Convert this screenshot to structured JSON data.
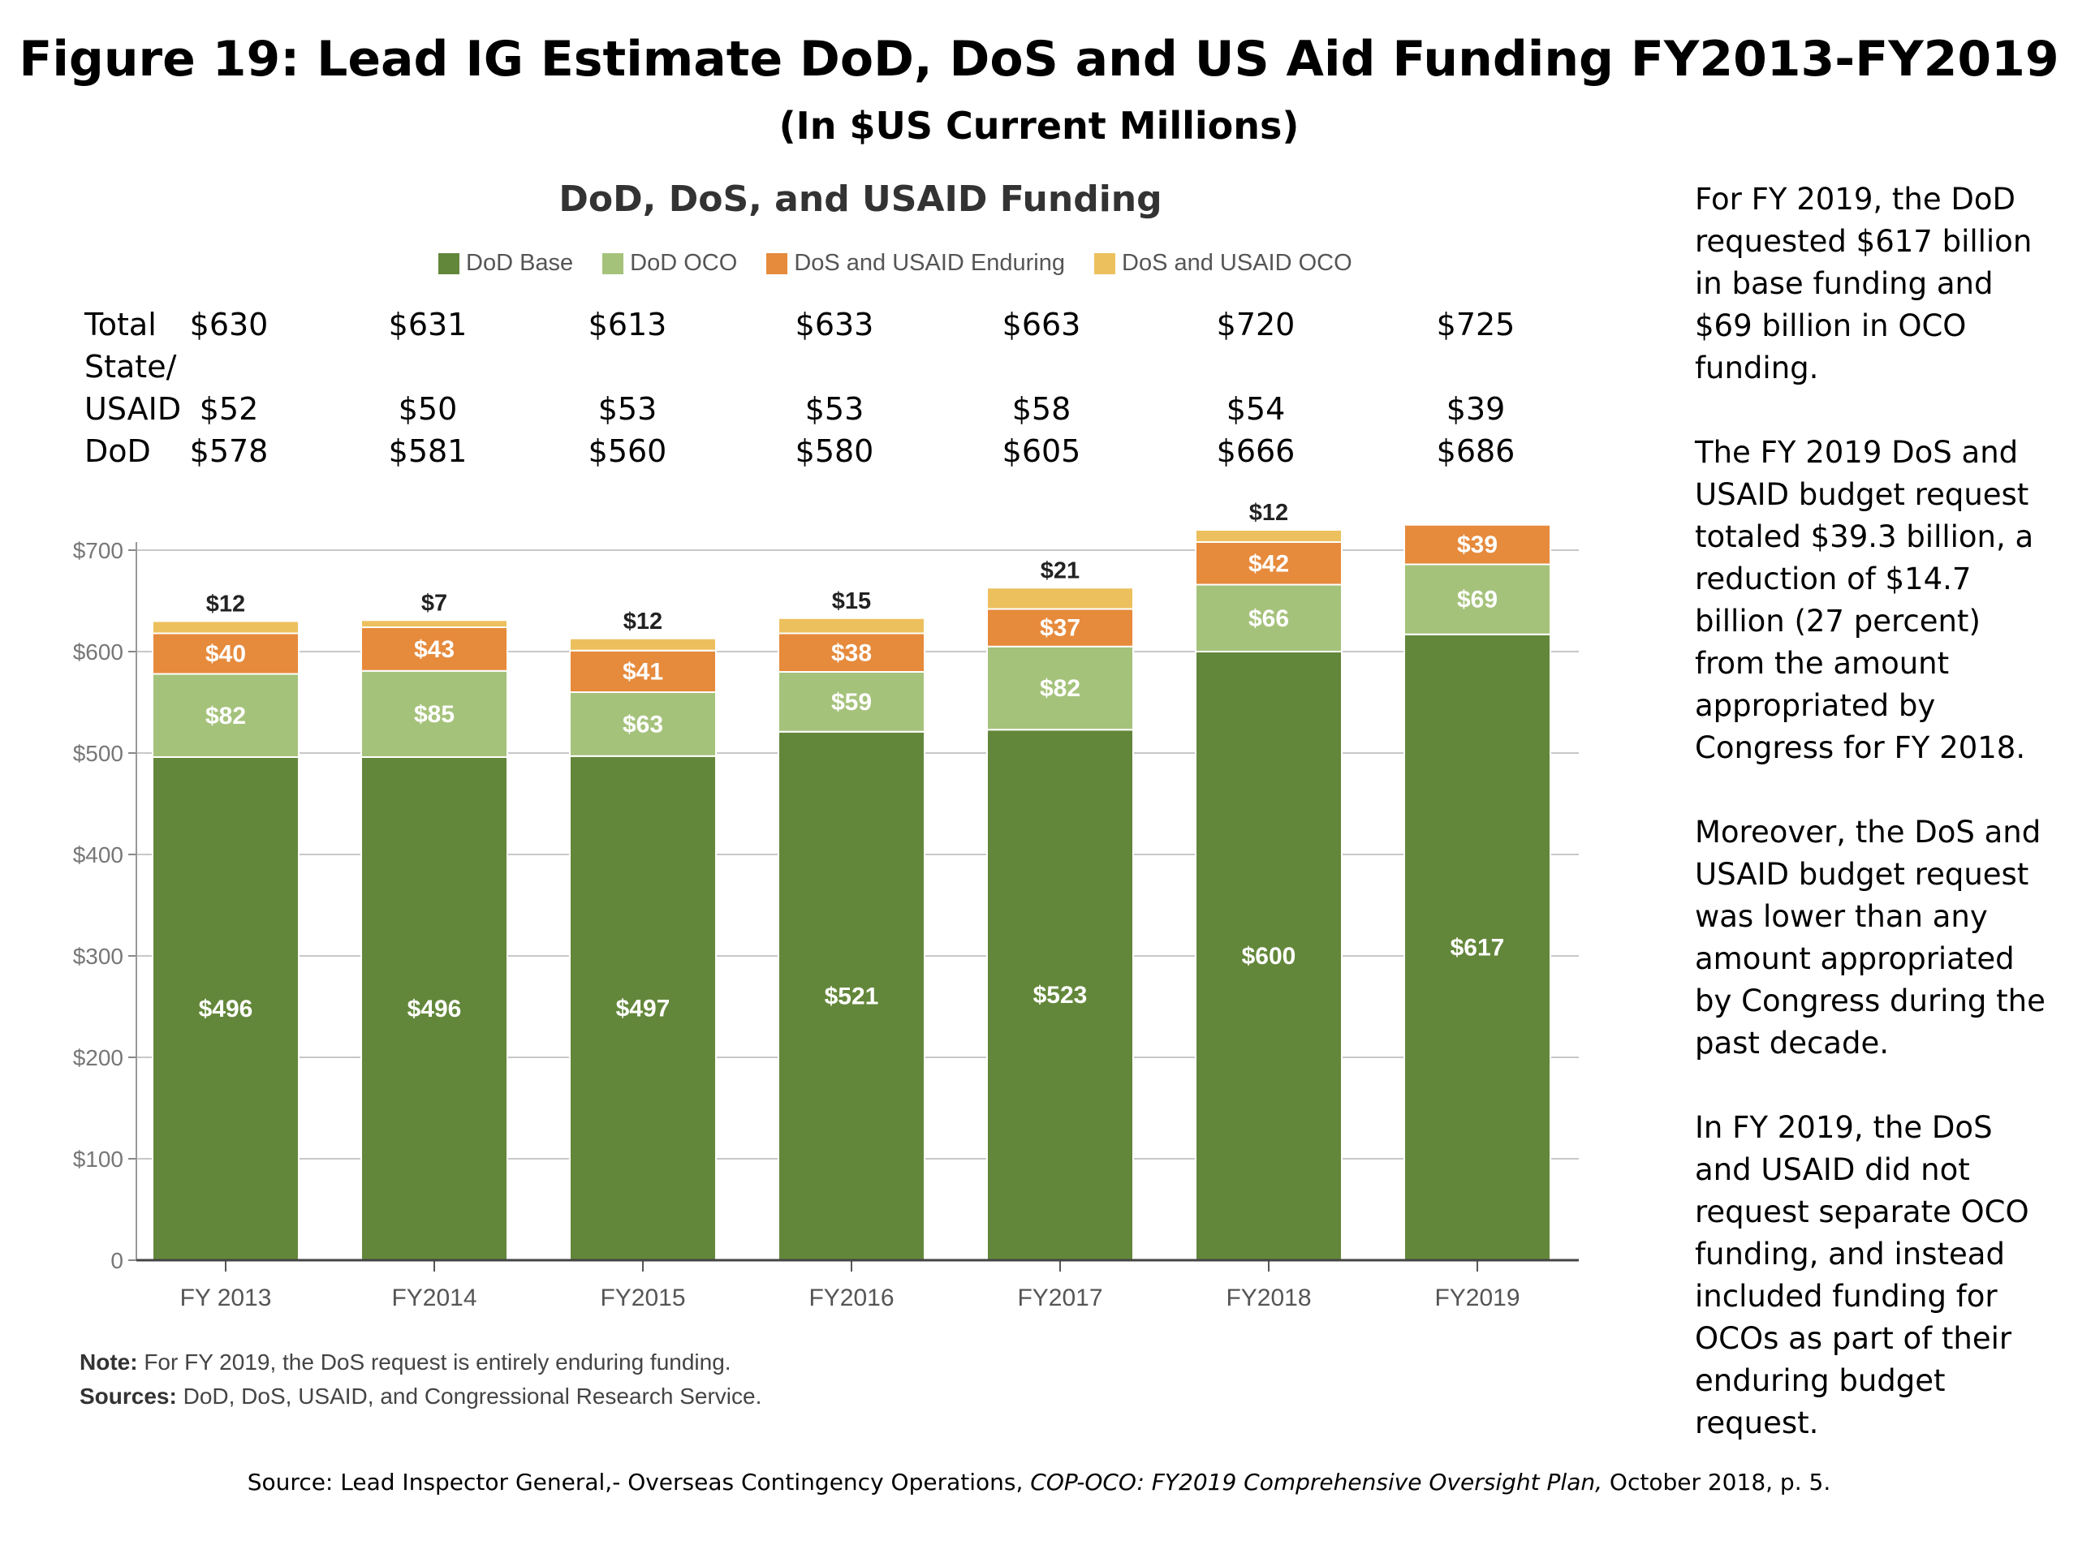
{
  "header": {
    "title": "Figure 19: Lead IG Estimate DoD, DoS and US Aid Funding FY2013-FY2019",
    "subtitle": "(In $US Current Millions)"
  },
  "summary_table": {
    "row_labels": [
      "Total",
      "State/",
      "USAID",
      "DoD"
    ],
    "total": [
      "$630",
      "$631",
      "$613",
      "$633",
      "$663",
      "$720",
      "$725"
    ],
    "state_usaid": [
      "$52",
      "$50",
      "$53",
      "$53",
      "$58",
      "$54",
      "$39"
    ],
    "dod": [
      "$578",
      "$581",
      "$560",
      "$580",
      "$605",
      "$666",
      "$686"
    ]
  },
  "chart_data": {
    "type": "bar",
    "stacked": true,
    "title": "DoD, DoS, and USAID Funding",
    "categories": [
      "FY 2013",
      "FY2014",
      "FY2015",
      "FY2016",
      "FY2017",
      "FY2018",
      "FY2019"
    ],
    "series": [
      {
        "name": "DoD Base",
        "color": "#63873a",
        "values": [
          496,
          496,
          497,
          521,
          523,
          600,
          617
        ],
        "labels": [
          "$496",
          "$496",
          "$497",
          "$521",
          "$523",
          "$600",
          "$617"
        ]
      },
      {
        "name": "DoD OCO",
        "color": "#a5c27b",
        "values": [
          82,
          85,
          63,
          59,
          82,
          66,
          69
        ],
        "labels": [
          "$82",
          "$85",
          "$63",
          "$59",
          "$82",
          "$66",
          "$69"
        ]
      },
      {
        "name": "DoS and USAID Enduring",
        "color": "#e68a3c",
        "values": [
          40,
          43,
          41,
          38,
          37,
          42,
          39
        ],
        "labels": [
          "$40",
          "$43",
          "$41",
          "$38",
          "$37",
          "$42",
          "$39"
        ]
      },
      {
        "name": "DoS and USAID OCO",
        "color": "#edc05e",
        "values": [
          12,
          7,
          12,
          15,
          21,
          12,
          0
        ],
        "labels": [
          "$12",
          "$7",
          "$12",
          "$15",
          "$21",
          "$12",
          ""
        ]
      }
    ],
    "yticks": [
      "0",
      "$100",
      "$200",
      "$300",
      "$400",
      "$500",
      "$600",
      "$700"
    ],
    "ylim": [
      0,
      725
    ],
    "grid": true,
    "legend": "top"
  },
  "note": {
    "note_label": "Note:",
    "note_text": "For FY 2019, the DoS request is entirely enduring funding.",
    "sources_label": "Sources:",
    "sources_text": "DoD, DoS, USAID, and Congressional Research Service."
  },
  "side_text": [
    "For FY 2019, the DoD requested $617 billion in base funding and $69 billion in OCO funding.",
    "The FY 2019 DoS and USAID budget request totaled $39.3 billion, a reduction of $14.7 billion (27 percent) from the amount appropriated by Congress for FY 2018.",
    "Moreover, the DoS and USAID budget request was lower than any amount appropriated by Congress during the past decade.",
    "In FY 2019, the DoS and USAID did not request separate OCO funding, and instead included funding for OCOs as part of their enduring budget request."
  ],
  "source": {
    "prefix": "Source: Lead Inspector General,- Overseas Contingency Operations, ",
    "italic": "COP-OCO: FY2019 Comprehensive Oversight Plan,",
    "suffix": " October 2018, p. 5."
  }
}
